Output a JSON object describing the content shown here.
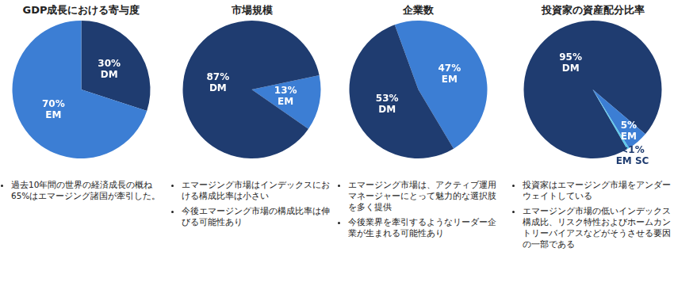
{
  "chart_data": [
    {
      "type": "pie",
      "title": "GDP成長における寄与度",
      "categories": [
        "DM",
        "EM"
      ],
      "values": [
        30,
        70
      ],
      "value_labels": [
        "30%",
        "70%"
      ],
      "colors": [
        "#1f3c70",
        "#3c7ed4"
      ],
      "data_labels": true,
      "annotations": [
        "過去10年間の世界の経済成長の概ね65%はエマージング諸国が牽引した。"
      ]
    },
    {
      "type": "pie",
      "title": "市場規模",
      "categories": [
        "EM",
        "DM"
      ],
      "values": [
        13,
        87
      ],
      "value_labels": [
        "13%",
        "87%"
      ],
      "colors": [
        "#3c7ed4",
        "#1f3c70"
      ],
      "data_labels": true,
      "annotations": [
        "エマージング市場はインデックスにおける構成比率は小さい",
        "今後エマージング市場の構成比率は伸びる可能性あり"
      ]
    },
    {
      "type": "pie",
      "title": "企業数",
      "categories": [
        "EM",
        "DM"
      ],
      "values": [
        47,
        53
      ],
      "value_labels": [
        "47%",
        "53%"
      ],
      "colors": [
        "#3c7ed4",
        "#1f3c70"
      ],
      "data_labels": true,
      "annotations": [
        "エマージング市場は、アクティブ運用マネージャーにとって魅力的な選択肢を多く提供",
        "今後業界を牽引するようなリーダー企業が生まれる可能性あり"
      ]
    },
    {
      "type": "pie",
      "title": "投資家の資産配分比率",
      "categories": [
        "DM",
        "EM",
        "EM SC"
      ],
      "values": [
        95,
        5,
        0.5
      ],
      "value_labels": [
        "95%",
        "5%",
        "<1%"
      ],
      "colors": [
        "#1f3c70",
        "#3c7ed4",
        "#5cc9ea"
      ],
      "data_labels": true,
      "annotations": [
        "投資家はエマージング市場をアンダーウェイトしている",
        "エマージング市場の低いインデックス構成比、リスク特性およびホームカントリーバイアスなどがそうさせる要因の一部である"
      ]
    }
  ]
}
